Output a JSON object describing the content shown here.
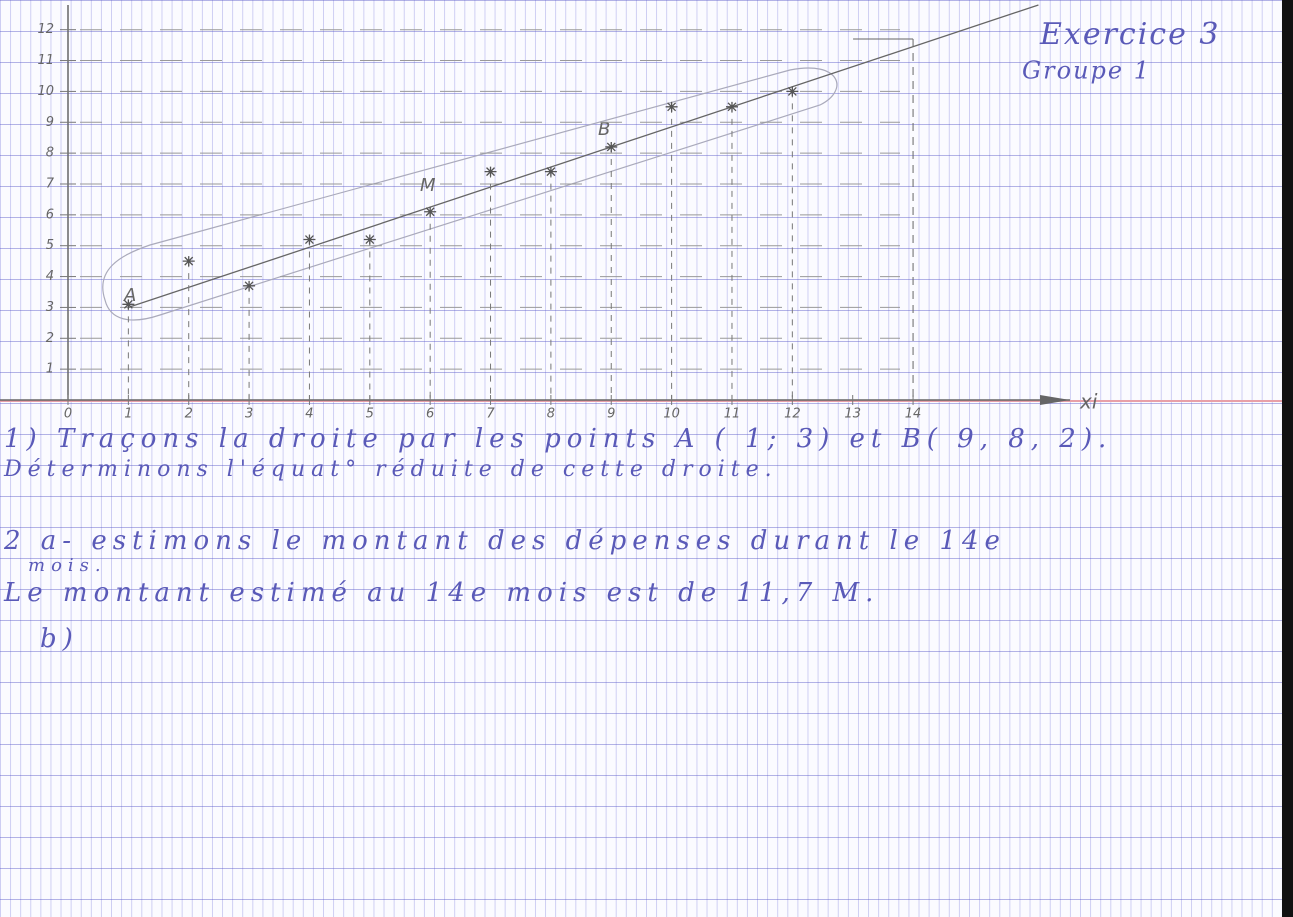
{
  "chart_data": {
    "type": "scatter",
    "title": "Exercice 3",
    "subtitle": "Groupe 1",
    "x_label": "xi",
    "x": [
      1,
      2,
      3,
      4,
      5,
      6,
      7,
      8,
      9,
      10,
      11,
      12
    ],
    "series": [
      {
        "color": "#555555",
        "values": [
          3.1,
          4.5,
          3.7,
          5.2,
          5.2,
          6.1,
          7.4,
          7.4,
          8.2,
          9.5,
          9.5,
          10
        ]
      }
    ],
    "line": {
      "x": [
        1,
        9
      ],
      "y": [
        3,
        8.2
      ]
    },
    "estimate": {
      "x": 14,
      "y": 11.7
    },
    "point_labels": [
      "A",
      "B",
      "M"
    ],
    "xlim": [
      0,
      16.6
    ],
    "ylim": [
      0,
      12.8
    ],
    "xticks": [
      0,
      1,
      2,
      3,
      4,
      5,
      6,
      7,
      8,
      9,
      10,
      11,
      12,
      13,
      14
    ],
    "yticks": [
      1,
      2,
      3,
      4,
      5,
      6,
      7,
      8,
      9,
      10,
      11,
      12
    ]
  },
  "notes": {
    "line1": "1) Traçons la droite par les points A ( 1; 3) et B( 9, 8, 2).",
    "line2": "Déterminons l'équat° réduite de cette droite.",
    "line3": "2 a- estimons le montant des dépenses durant le 14e",
    "line4": "mois.",
    "line5": "Le montant estimé au 14e mois est de 11,7 M.",
    "line6": "b)"
  }
}
